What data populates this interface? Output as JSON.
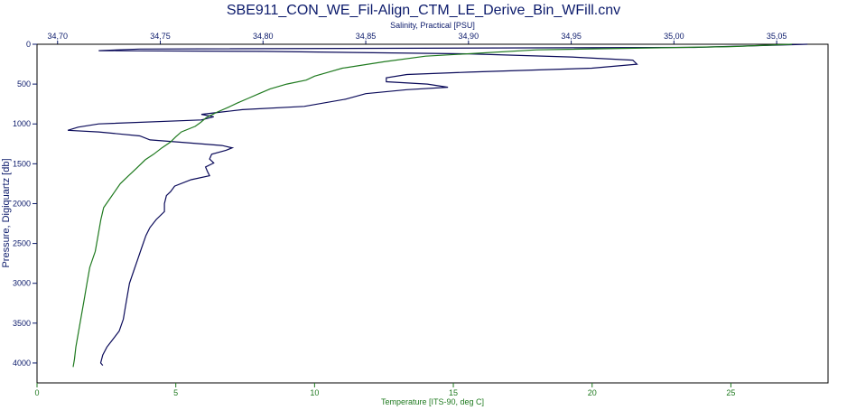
{
  "chart_data": {
    "type": "line",
    "title": "SBE911_CON_WE_Fil-Align_CTM_LE_Derive_Bin_WFill.cnv",
    "top_axis": {
      "label": "Salinity, Practical [PSU]",
      "range": [
        34.69,
        35.075
      ],
      "ticks": [
        "34,70",
        "34,75",
        "34,80",
        "34,85",
        "34,90",
        "34,95",
        "35,00",
        "35,05"
      ],
      "tick_values": [
        34.7,
        34.75,
        34.8,
        34.85,
        34.9,
        34.95,
        35.0,
        35.05
      ],
      "color": "#0b1a6b"
    },
    "left_axis": {
      "label": "Pressure, Digiquartz [db]",
      "range": [
        0,
        4250
      ],
      "inverted": true,
      "ticks": [
        "0",
        "500",
        "1000",
        "1500",
        "2000",
        "2500",
        "3000",
        "3500",
        "4000"
      ],
      "tick_values": [
        0,
        500,
        1000,
        1500,
        2000,
        2500,
        3000,
        3500,
        4000
      ],
      "color": "#0b1a6b"
    },
    "bottom_axis": {
      "label": "Temperature [ITS-90, deg C]",
      "range": [
        0,
        28.5
      ],
      "ticks": [
        "0",
        "5",
        "10",
        "15",
        "20",
        "25"
      ],
      "tick_values": [
        0,
        5,
        10,
        15,
        20,
        25
      ],
      "color": "#1f7a1f"
    },
    "grid": false,
    "series": [
      {
        "axis": "top",
        "color": "#0b0b5a",
        "points": [
          [
            35.065,
            0
          ],
          [
            35.01,
            40
          ],
          [
            34.74,
            60
          ],
          [
            34.72,
            80
          ],
          [
            34.8,
            90
          ],
          [
            34.9,
            120
          ],
          [
            34.95,
            160
          ],
          [
            34.98,
            200
          ],
          [
            34.982,
            250
          ],
          [
            34.96,
            300
          ],
          [
            34.9,
            350
          ],
          [
            34.87,
            380
          ],
          [
            34.86,
            420
          ],
          [
            34.86,
            470
          ],
          [
            34.88,
            500
          ],
          [
            34.89,
            540
          ],
          [
            34.87,
            570
          ],
          [
            34.85,
            620
          ],
          [
            34.84,
            690
          ],
          [
            34.82,
            780
          ],
          [
            34.79,
            820
          ],
          [
            34.78,
            850
          ],
          [
            34.77,
            880
          ],
          [
            34.776,
            910
          ],
          [
            34.77,
            950
          ],
          [
            34.72,
            1000
          ],
          [
            34.71,
            1040
          ],
          [
            34.705,
            1080
          ],
          [
            34.72,
            1100
          ],
          [
            34.74,
            1150
          ],
          [
            34.745,
            1200
          ],
          [
            34.76,
            1230
          ],
          [
            34.78,
            1270
          ],
          [
            34.785,
            1300
          ],
          [
            34.782,
            1330
          ],
          [
            34.775,
            1380
          ],
          [
            34.774,
            1440
          ],
          [
            34.776,
            1490
          ],
          [
            34.772,
            1540
          ],
          [
            34.773,
            1600
          ],
          [
            34.774,
            1650
          ],
          [
            34.765,
            1700
          ],
          [
            34.757,
            1780
          ],
          [
            34.755,
            1850
          ],
          [
            34.753,
            1900
          ],
          [
            34.752,
            2000
          ],
          [
            34.752,
            2100
          ],
          [
            34.748,
            2200
          ],
          [
            34.745,
            2300
          ],
          [
            34.743,
            2400
          ],
          [
            34.741,
            2550
          ],
          [
            34.739,
            2700
          ],
          [
            34.737,
            2850
          ],
          [
            34.735,
            3000
          ],
          [
            34.734,
            3150
          ],
          [
            34.733,
            3300
          ],
          [
            34.732,
            3450
          ],
          [
            34.73,
            3600
          ],
          [
            34.727,
            3700
          ],
          [
            34.724,
            3800
          ],
          [
            34.722,
            3900
          ],
          [
            34.721,
            4000
          ],
          [
            34.722,
            4030
          ]
        ]
      },
      {
        "axis": "bottom",
        "color": "#1f7a1f",
        "points": [
          [
            27.2,
            0
          ],
          [
            25.0,
            30
          ],
          [
            18.0,
            70
          ],
          [
            14.0,
            150
          ],
          [
            12.5,
            220
          ],
          [
            11.0,
            300
          ],
          [
            10.5,
            350
          ],
          [
            10.0,
            400
          ],
          [
            9.7,
            450
          ],
          [
            9.0,
            500
          ],
          [
            8.4,
            560
          ],
          [
            8.0,
            620
          ],
          [
            7.6,
            680
          ],
          [
            7.2,
            740
          ],
          [
            6.9,
            790
          ],
          [
            6.5,
            850
          ],
          [
            6.1,
            920
          ],
          [
            5.9,
            980
          ],
          [
            5.7,
            1030
          ],
          [
            5.2,
            1100
          ],
          [
            5.0,
            1160
          ],
          [
            4.8,
            1230
          ],
          [
            4.5,
            1300
          ],
          [
            4.2,
            1380
          ],
          [
            3.9,
            1450
          ],
          [
            3.6,
            1550
          ],
          [
            3.3,
            1650
          ],
          [
            3.0,
            1750
          ],
          [
            2.8,
            1850
          ],
          [
            2.6,
            1950
          ],
          [
            2.4,
            2050
          ],
          [
            2.3,
            2200
          ],
          [
            2.2,
            2400
          ],
          [
            2.1,
            2600
          ],
          [
            1.9,
            2800
          ],
          [
            1.8,
            3000
          ],
          [
            1.7,
            3200
          ],
          [
            1.6,
            3400
          ],
          [
            1.5,
            3600
          ],
          [
            1.4,
            3800
          ],
          [
            1.35,
            3950
          ],
          [
            1.3,
            4050
          ]
        ]
      }
    ]
  }
}
